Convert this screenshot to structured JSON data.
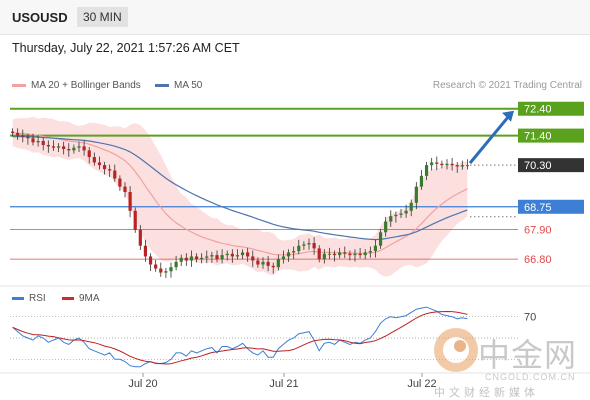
{
  "header": {
    "symbol": "USOUSD",
    "timeframe": "30 MIN",
    "datetime": "Thursday, July 22, 2021 1:57:26 AM CET"
  },
  "legend": {
    "ma20": "MA 20 + Bollinger Bands",
    "ma50": "MA 50",
    "credit": "Research © 2021 Trading Central"
  },
  "indicator_legend": {
    "rsi": "RSI",
    "ma9": "9MA"
  },
  "colors": {
    "green": "#5aa11e",
    "blue": "#3d7fd4",
    "red": "#e04b4b",
    "current": "#333333",
    "arrow": "#2d6cb8",
    "band": "#fbd6d6",
    "ma20": "#f2a0a0",
    "ma50": "#4f74ad",
    "candle_up": "#3a7a2a",
    "candle_down": "#bb2222"
  },
  "watermark": {
    "cn": "中金网",
    "en": "CNGOLD.COM.CN",
    "sub": "中文财经新媒体"
  },
  "chart_data": [
    {
      "type": "candlestick",
      "title": "USOUSD",
      "x_ticks": [
        "Jul 20",
        "Jul 21",
        "Jul 22"
      ],
      "ylim": [
        65.8,
        72.8
      ],
      "levels": [
        {
          "label": "72.40",
          "value": 72.4,
          "role": "resistance",
          "color": "green"
        },
        {
          "label": "71.40",
          "value": 71.4,
          "role": "resistance",
          "color": "green"
        },
        {
          "label": "70.30",
          "value": 70.3,
          "role": "current",
          "color": "current"
        },
        {
          "label": "68.75",
          "value": 68.75,
          "role": "pivot",
          "color": "blue"
        },
        {
          "label": "67.90",
          "value": 67.9,
          "role": "support",
          "color": "red"
        },
        {
          "label": "66.80",
          "value": 66.8,
          "role": "support",
          "color": "red"
        }
      ],
      "close": [
        71.5,
        71.4,
        71.35,
        71.3,
        71.15,
        71.2,
        71.05,
        71.0,
        70.95,
        71.0,
        70.9,
        70.85,
        70.95,
        71.0,
        70.85,
        70.6,
        70.4,
        70.3,
        70.15,
        70.1,
        69.8,
        69.5,
        69.3,
        68.6,
        67.9,
        67.3,
        66.9,
        66.6,
        66.45,
        66.3,
        66.35,
        66.5,
        66.7,
        66.85,
        66.75,
        66.9,
        66.8,
        66.85,
        66.9,
        66.95,
        66.8,
        66.95,
        67.0,
        66.9,
        66.95,
        67.05,
        66.9,
        66.75,
        66.6,
        66.7,
        66.55,
        66.5,
        66.8,
        66.9,
        67.05,
        67.1,
        67.3,
        67.35,
        67.4,
        67.2,
        66.8,
        67.0,
        67.0,
        66.95,
        67.05,
        67.0,
        66.95,
        67.0,
        66.95,
        67.05,
        67.1,
        67.3,
        67.8,
        68.2,
        68.4,
        68.45,
        68.5,
        68.6,
        68.9,
        69.5,
        69.9,
        70.3,
        70.4,
        70.35,
        70.3,
        70.35,
        70.3,
        70.25,
        70.3,
        70.3
      ],
      "ma20_start": 71.5,
      "ma50_start": 71.35,
      "band_width": 0.5,
      "projection_to": 72.4
    },
    {
      "type": "line",
      "title": "RSI",
      "series": [
        {
          "name": "RSI",
          "color": "blue"
        },
        {
          "name": "9MA",
          "color": "red"
        }
      ],
      "levels": [
        {
          "label": "70",
          "value": 70
        }
      ],
      "ylim": [
        20,
        80
      ],
      "rsi": [
        60,
        56,
        52,
        50,
        48,
        52,
        50,
        46,
        48,
        50,
        46,
        44,
        48,
        50,
        46,
        40,
        38,
        36,
        34,
        36,
        30,
        30,
        28,
        24,
        23,
        23,
        26,
        28,
        26,
        26,
        27,
        30,
        36,
        36,
        33,
        38,
        36,
        38,
        40,
        41,
        36,
        42,
        42,
        40,
        42,
        45,
        40,
        36,
        34,
        38,
        32,
        32,
        40,
        44,
        48,
        50,
        54,
        55,
        56,
        48,
        38,
        45,
        46,
        44,
        48,
        46,
        44,
        46,
        45,
        48,
        50,
        56,
        64,
        68,
        70,
        69,
        70,
        71,
        74,
        77,
        78,
        79,
        77,
        75,
        72,
        71,
        70,
        68,
        69,
        68
      ]
    }
  ]
}
